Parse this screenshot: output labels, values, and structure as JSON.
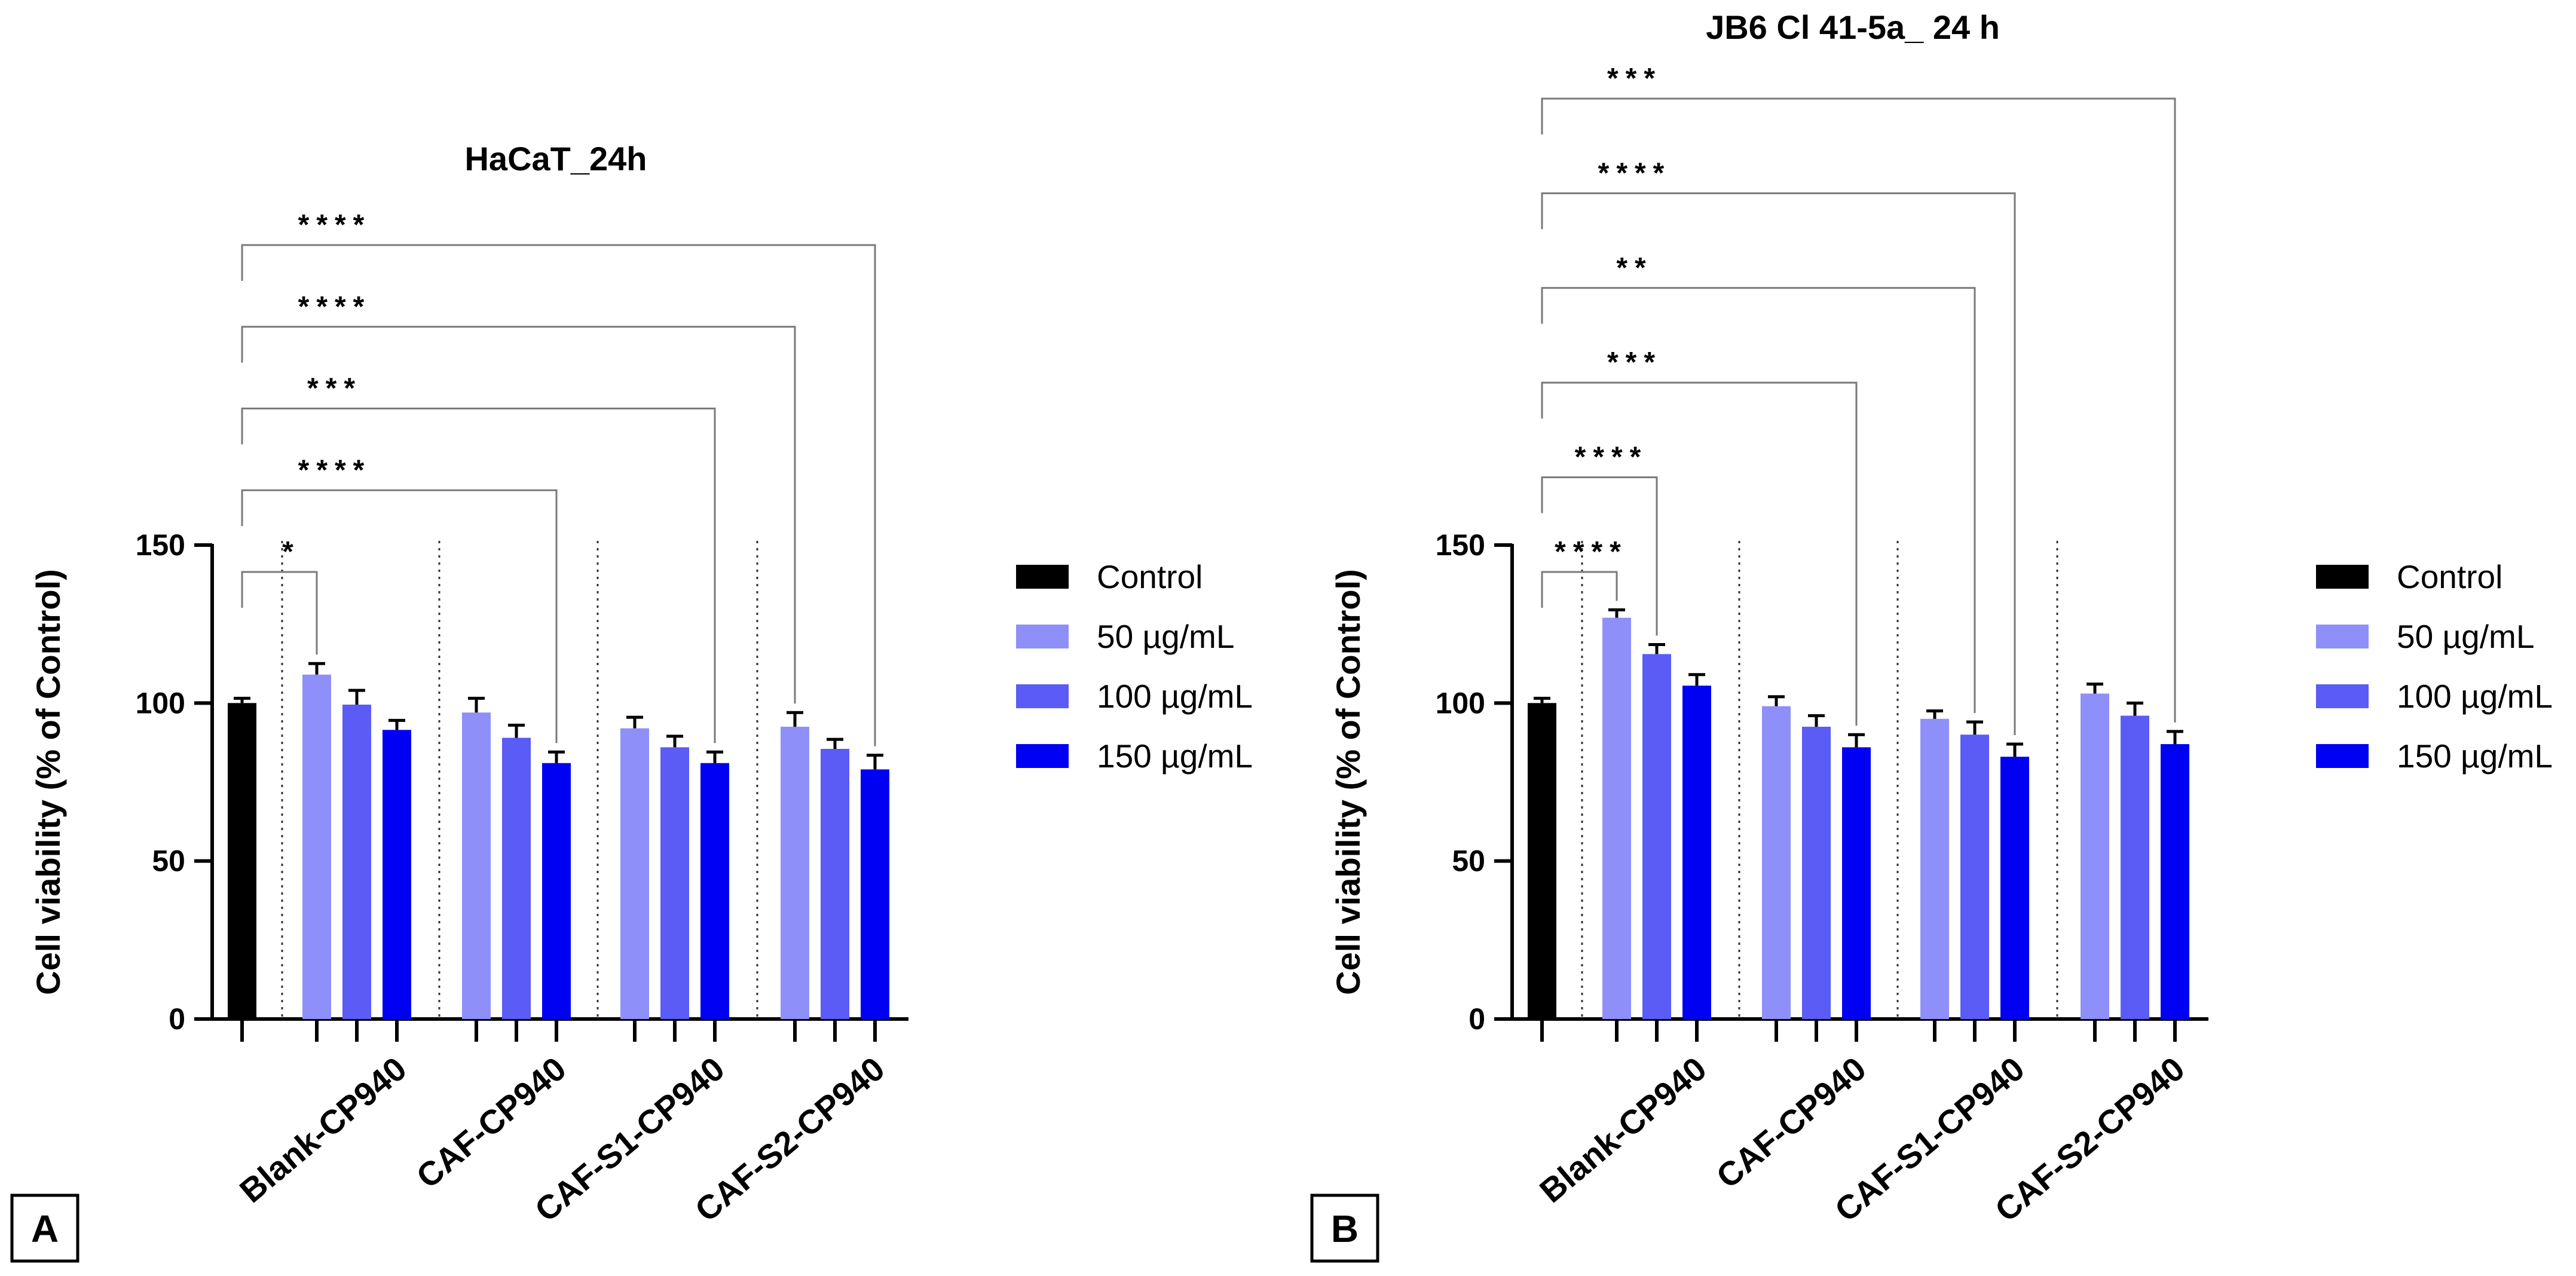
{
  "chart_data": [
    {
      "type": "bar",
      "panel_label": "A",
      "title": "HaCaT_24h",
      "xlabel": "",
      "ylabel": "Cell viability (% of Control)",
      "ylim": [
        0,
        150
      ],
      "yticks": [
        0,
        50,
        100,
        150
      ],
      "categories": [
        "Blank-CP940",
        "CAF-CP940",
        "CAF-S1-CP940",
        "CAF-S2-CP940"
      ],
      "control": {
        "name": "Control",
        "value": 100,
        "error": 1.5
      },
      "series": [
        {
          "name": "50 µg/mL",
          "values": [
            109,
            97,
            92,
            92.5
          ],
          "errors": [
            3.5,
            4.5,
            3.5,
            4.5
          ]
        },
        {
          "name": "100 µg/mL",
          "values": [
            99.5,
            89,
            86,
            85.5
          ],
          "errors": [
            4.5,
            4,
            3.5,
            3
          ]
        },
        {
          "name": "150 µg/mL",
          "values": [
            91.5,
            81,
            81,
            79
          ],
          "errors": [
            3,
            3.5,
            3.5,
            4.5
          ]
        }
      ],
      "significance": [
        {
          "label": "*",
          "target_group": 0,
          "target_series": 0
        },
        {
          "label": "****",
          "target_group": 1,
          "target_series": 2
        },
        {
          "label": "***",
          "target_group": 2,
          "target_series": 2
        },
        {
          "label": "****",
          "target_group": 3,
          "target_series": 0
        },
        {
          "label": "****",
          "target_group": 3,
          "target_series": 2
        }
      ]
    },
    {
      "type": "bar",
      "panel_label": "B",
      "title": "JB6 Cl 41-5a_ 24 h",
      "xlabel": "",
      "ylabel": "Cell viability (% of Control)",
      "ylim": [
        0,
        150
      ],
      "yticks": [
        0,
        50,
        100,
        150
      ],
      "categories": [
        "Blank-CP940",
        "CAF-CP940",
        "CAF-S1-CP940",
        "CAF-S2-CP940"
      ],
      "control": {
        "name": "Control",
        "value": 100,
        "error": 1.5
      },
      "series": [
        {
          "name": "50 µg/mL",
          "values": [
            127,
            99,
            95,
            103
          ],
          "errors": [
            2.5,
            3,
            2.5,
            3
          ]
        },
        {
          "name": "100 µg/mL",
          "values": [
            115.5,
            92.5,
            90,
            96
          ],
          "errors": [
            3,
            3.5,
            4,
            4
          ]
        },
        {
          "name": "150 µg/mL",
          "values": [
            105.5,
            86,
            83,
            87
          ],
          "errors": [
            3.5,
            4,
            4,
            4
          ]
        }
      ],
      "significance": [
        {
          "label": "****",
          "target_group": 0,
          "target_series": 0
        },
        {
          "label": "****",
          "target_group": 0,
          "target_series": 1
        },
        {
          "label": "***",
          "target_group": 1,
          "target_series": 2
        },
        {
          "label": "**",
          "target_group": 2,
          "target_series": 1
        },
        {
          "label": "****",
          "target_group": 2,
          "target_series": 2
        },
        {
          "label": "***",
          "target_group": 3,
          "target_series": 2
        }
      ]
    }
  ],
  "colors": {
    "control": "#000000",
    "s50": "#8f8ff9",
    "s100": "#5b5bf6",
    "s150": "#0000f2"
  },
  "legend": [
    "Control",
    "50 µg/mL",
    "100 µg/mL",
    "150 µg/mL"
  ]
}
